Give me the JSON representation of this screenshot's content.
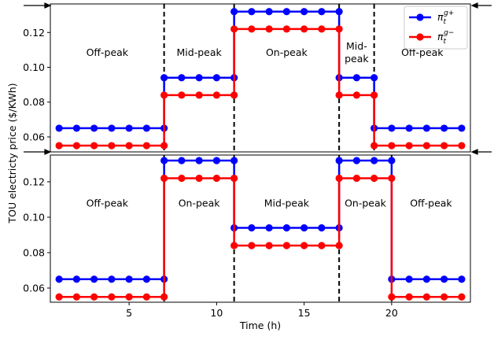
{
  "chart_data": [
    {
      "type": "line",
      "x": [
        1,
        2,
        3,
        4,
        5,
        6,
        7,
        7,
        8,
        9,
        10,
        11,
        11,
        12,
        13,
        14,
        15,
        16,
        17,
        17,
        18,
        19,
        19,
        20,
        21,
        22,
        23,
        24
      ],
      "series": [
        {
          "name": "π",
          "name_sub": "t",
          "name_sup": "g+",
          "color": "#0000ff",
          "values": [
            0.065,
            0.065,
            0.065,
            0.065,
            0.065,
            0.065,
            0.065,
            0.094,
            0.094,
            0.094,
            0.094,
            0.094,
            0.132,
            0.132,
            0.132,
            0.132,
            0.132,
            0.132,
            0.132,
            0.094,
            0.094,
            0.094,
            0.065,
            0.065,
            0.065,
            0.065,
            0.065,
            0.065
          ]
        },
        {
          "name": "π",
          "name_sub": "t",
          "name_sup": "g−",
          "color": "#ff0000",
          "values": [
            0.055,
            0.055,
            0.055,
            0.055,
            0.055,
            0.055,
            0.055,
            0.084,
            0.084,
            0.084,
            0.084,
            0.084,
            0.122,
            0.122,
            0.122,
            0.122,
            0.122,
            0.122,
            0.122,
            0.084,
            0.084,
            0.084,
            0.055,
            0.055,
            0.055,
            0.055,
            0.055,
            0.055
          ]
        }
      ],
      "vlines": [
        7,
        11,
        17,
        19
      ],
      "period_labels": [
        [
          "Off-peak"
        ],
        [
          "Mid-peak"
        ],
        [
          "On-peak"
        ],
        [
          "Mid-",
          "peak"
        ],
        [
          "Off-peak"
        ]
      ],
      "xlim": [
        0.5,
        24.5
      ],
      "ylim": [
        0.0514,
        0.1364
      ],
      "yticks": [
        0.06,
        0.08,
        {
          "value": 0.1,
          "label": "0.10"
        },
        0.12
      ],
      "ylabel": "TOU electricty price ($/KWh)",
      "legend": "upper right"
    },
    {
      "type": "line",
      "x": [
        1,
        2,
        3,
        4,
        5,
        6,
        7,
        7,
        8,
        9,
        10,
        11,
        11,
        12,
        13,
        14,
        15,
        16,
        17,
        17,
        18,
        19,
        20,
        20,
        21,
        22,
        23,
        24
      ],
      "series": [
        {
          "color": "#0000ff",
          "values": [
            0.065,
            0.065,
            0.065,
            0.065,
            0.065,
            0.065,
            0.065,
            0.132,
            0.132,
            0.132,
            0.132,
            0.132,
            0.094,
            0.094,
            0.094,
            0.094,
            0.094,
            0.094,
            0.094,
            0.132,
            0.132,
            0.132,
            0.132,
            0.065,
            0.065,
            0.065,
            0.065,
            0.065
          ]
        },
        {
          "color": "#ff0000",
          "values": [
            0.055,
            0.055,
            0.055,
            0.055,
            0.055,
            0.055,
            0.055,
            0.122,
            0.122,
            0.122,
            0.122,
            0.122,
            0.084,
            0.084,
            0.084,
            0.084,
            0.084,
            0.084,
            0.084,
            0.122,
            0.122,
            0.122,
            0.122,
            0.055,
            0.055,
            0.055,
            0.055,
            0.055
          ]
        }
      ],
      "vlines": [
        7,
        11,
        17,
        20
      ],
      "period_labels": [
        [
          "Off-peak"
        ],
        [
          "On-peak"
        ],
        [
          "Mid-peak"
        ],
        [
          "On-peak"
        ],
        [
          "Off-peak"
        ]
      ],
      "xlim": [
        0.5,
        24.5
      ],
      "ylim": [
        0.052,
        0.1351
      ],
      "xticks": [
        5,
        10,
        15,
        20
      ],
      "yticks": [
        0.06,
        0.08,
        {
          "value": 0.1,
          "label": "0.10"
        },
        0.12
      ],
      "xlabel": "Time (h)"
    }
  ]
}
